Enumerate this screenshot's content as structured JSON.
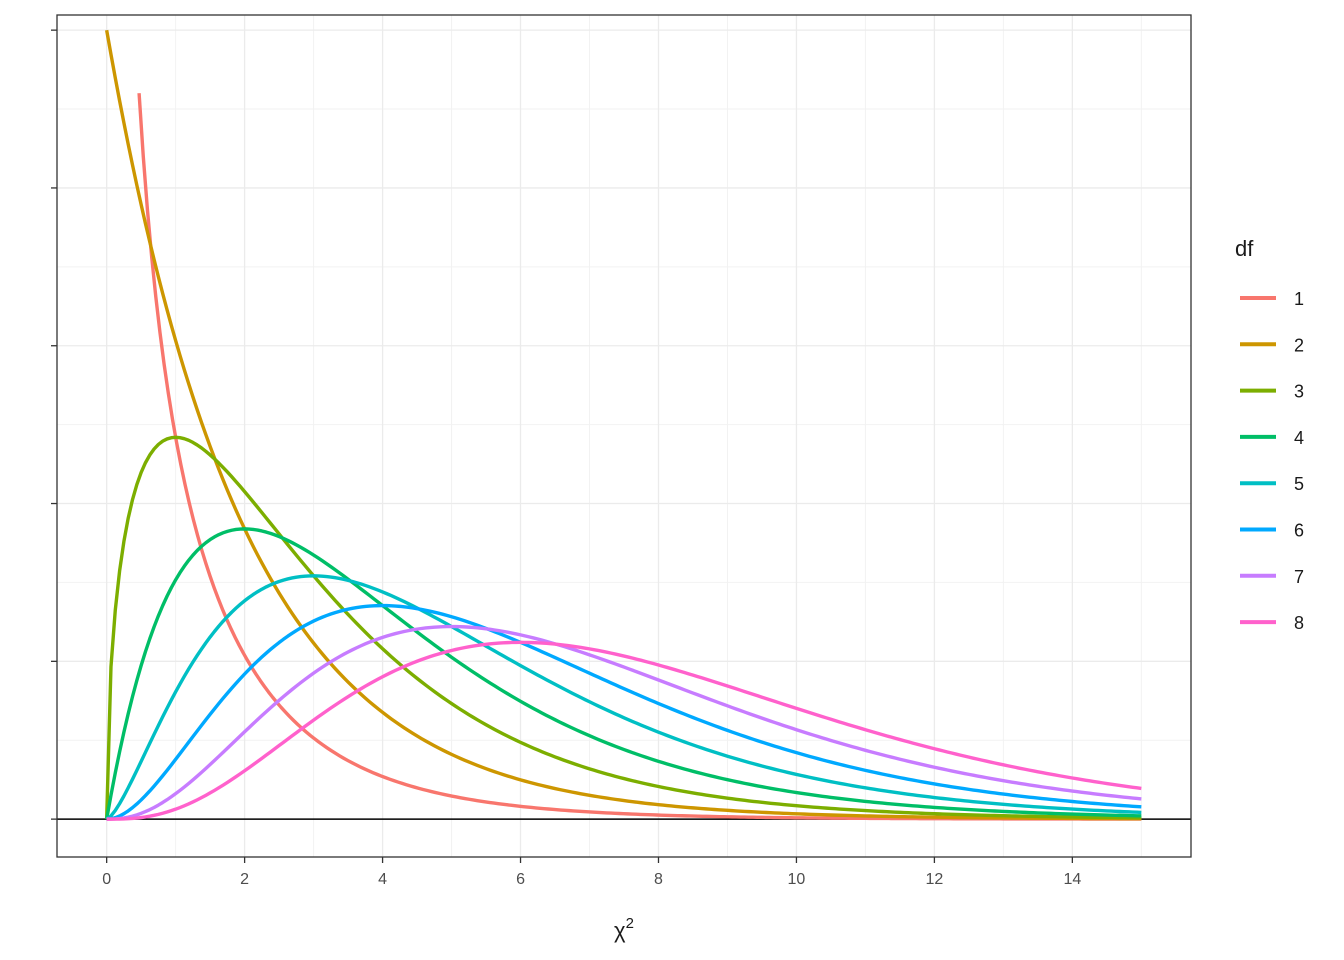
{
  "chart_data": {
    "type": "line",
    "title": "",
    "xlabel": "χ",
    "xlabel_superscript": "2",
    "ylabel": "",
    "xlim": [
      -0.72,
      15.72
    ],
    "ylim": [
      -0.024,
      0.5096
    ],
    "x_ticks": [
      0,
      2,
      4,
      6,
      8,
      10,
      12,
      14
    ],
    "x_tick_labels": [
      "0",
      "2",
      "4",
      "6",
      "8",
      "10",
      "12",
      "14"
    ],
    "y_ticks": [
      0,
      0.1,
      0.2,
      0.3,
      0.4,
      0.5
    ],
    "y_tick_labels_visible": false,
    "hline_y": 0,
    "grid": true,
    "legend": {
      "title": "df",
      "placement": "right",
      "entries": [
        " 1",
        " 2",
        "3",
        "4",
        "5",
        "6",
        "7",
        "8"
      ]
    },
    "series": [
      {
        "name": " 1",
        "df": 1,
        "color": "#F8766D",
        "x_start": 0.47,
        "x_end": 15,
        "x": [
          0.47,
          0.6,
          0.8,
          1.0,
          1.5,
          2.0,
          3.0,
          4.0,
          5.0,
          6.0,
          8.0,
          10.0,
          12.0,
          15.0
        ],
        "y": [
          0.4747,
          0.395,
          0.32,
          0.242,
          0.154,
          0.104,
          0.0514,
          0.027,
          0.0146,
          0.0081,
          0.0026,
          0.0008,
          0.0003,
          0.0001
        ]
      },
      {
        "name": " 2",
        "df": 2,
        "color": "#CD9600",
        "x_start": 0,
        "x_end": 15,
        "x": [
          0,
          1,
          2,
          3,
          4,
          5,
          6,
          8,
          10,
          12,
          15
        ],
        "y": [
          0.5,
          0.3033,
          0.1839,
          0.1116,
          0.0677,
          0.041,
          0.0249,
          0.0092,
          0.0034,
          0.0012,
          0.0003
        ]
      },
      {
        "name": "3",
        "df": 3,
        "color": "#7CAE00",
        "x_start": 0,
        "x_end": 15,
        "x": [
          0,
          0.5,
          1,
          2,
          3,
          4,
          6,
          8,
          10,
          12,
          15
        ],
        "y": [
          0,
          0.2197,
          0.242,
          0.2076,
          0.1542,
          0.108,
          0.0487,
          0.0206,
          0.0085,
          0.0034,
          0.0008
        ]
      },
      {
        "name": "4",
        "df": 4,
        "color": "#00BE67",
        "x_start": 0,
        "x_end": 15,
        "x": [
          0,
          1,
          2,
          3,
          4,
          6,
          8,
          10,
          12,
          15
        ],
        "y": [
          0,
          0.1516,
          0.1839,
          0.1673,
          0.1353,
          0.0747,
          0.0366,
          0.0168,
          0.0074,
          0.0021
        ]
      },
      {
        "name": "5",
        "df": 5,
        "color": "#00BFC4",
        "x_start": 0,
        "x_end": 15,
        "x": [
          0,
          1,
          2,
          3,
          4,
          6,
          8,
          10,
          12,
          15
        ],
        "y": [
          0,
          0.0807,
          0.1384,
          0.1542,
          0.144,
          0.0973,
          0.0551,
          0.0283,
          0.0135,
          0.0045
        ]
      },
      {
        "name": "6",
        "df": 6,
        "color": "#00A9FF",
        "x_start": 0,
        "x_end": 15,
        "x": [
          0,
          1,
          2,
          3,
          4,
          6,
          8,
          10,
          12,
          15
        ],
        "y": [
          0,
          0.0379,
          0.092,
          0.1255,
          0.1353,
          0.112,
          0.0733,
          0.0421,
          0.0223,
          0.0082
        ]
      },
      {
        "name": "7",
        "df": 7,
        "color": "#C77CFF",
        "x_start": 0,
        "x_end": 15,
        "x": [
          0,
          1,
          2,
          3,
          5,
          7,
          9,
          11,
          13,
          15
        ],
        "y": [
          0,
          0.0161,
          0.0553,
          0.0925,
          0.12,
          0.1084,
          0.08,
          0.053,
          0.033,
          0.0193
        ]
      },
      {
        "name": "8",
        "df": 8,
        "color": "#FF61CC",
        "x_start": 0,
        "x_end": 15,
        "x": [
          0,
          2,
          4,
          6,
          8,
          10,
          12,
          15
        ],
        "y": [
          0,
          0.0307,
          0.0902,
          0.112,
          0.0977,
          0.07,
          0.0446,
          0.0194
        ]
      }
    ]
  }
}
